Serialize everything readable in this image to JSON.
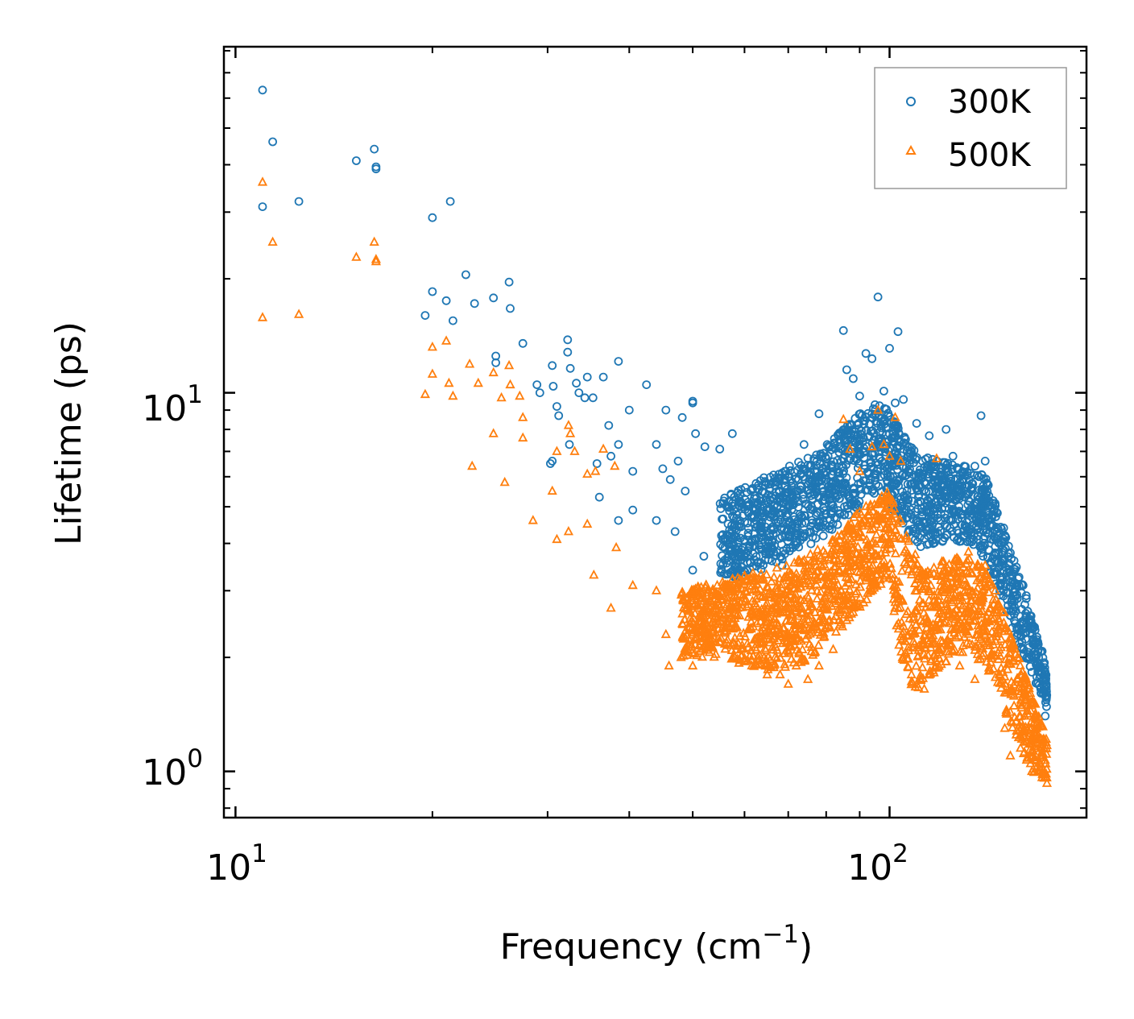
{
  "chart_data": {
    "type": "scatter",
    "title": "",
    "xlabel": "Frequency (cm",
    "xlabel_sup": "−1",
    "xlabel_close": ")",
    "ylabel": "Lifetime (ps)",
    "xscale": "log",
    "yscale": "log",
    "xlim": [
      9.6,
      200
    ],
    "ylim": [
      0.755,
      82
    ],
    "x_major_ticks": [
      {
        "value": 10,
        "base": "10",
        "exp": "1"
      },
      {
        "value": 100,
        "base": "10",
        "exp": "2"
      }
    ],
    "y_major_ticks": [
      {
        "value": 1,
        "base": "10",
        "exp": "0"
      },
      {
        "value": 10,
        "base": "10",
        "exp": "1"
      }
    ],
    "legend_position": "top-right",
    "series": [
      {
        "name": "300K",
        "marker": "circle",
        "color": "#1f77b4",
        "points": [
          [
            11.0,
            63
          ],
          [
            11.4,
            46
          ],
          [
            11.0,
            31
          ],
          [
            12.5,
            32
          ],
          [
            15.3,
            41
          ],
          [
            16.3,
            44
          ],
          [
            16.4,
            39.5
          ],
          [
            16.4,
            39
          ],
          [
            20.0,
            29
          ],
          [
            21.3,
            32
          ],
          [
            20.0,
            18.5
          ],
          [
            21.0,
            17.5
          ],
          [
            19.5,
            16
          ],
          [
            21.5,
            15.5
          ],
          [
            22.5,
            20.5
          ],
          [
            23.2,
            17.2
          ],
          [
            24.8,
            17.8
          ],
          [
            26.2,
            19.6
          ],
          [
            26.3,
            16.7
          ],
          [
            27.5,
            13.5
          ],
          [
            25.0,
            12
          ],
          [
            25.0,
            12.5
          ],
          [
            28.9,
            10.5
          ],
          [
            29.2,
            10
          ],
          [
            30.5,
            11.8
          ],
          [
            30.6,
            10.4
          ],
          [
            32.2,
            13.8
          ],
          [
            32.2,
            12.8
          ],
          [
            32.5,
            11.6
          ],
          [
            31.0,
            9.2
          ],
          [
            31.2,
            8.7
          ],
          [
            33.5,
            10
          ],
          [
            33.2,
            10.6
          ],
          [
            34.5,
            11
          ],
          [
            34.2,
            9.7
          ],
          [
            35.2,
            9.7
          ],
          [
            36.5,
            11
          ],
          [
            38.5,
            12.1
          ],
          [
            37.2,
            8.2
          ],
          [
            40.0,
            9
          ],
          [
            42.5,
            10.5
          ],
          [
            45.5,
            9
          ],
          [
            48.2,
            8.6
          ],
          [
            50.0,
            9.5
          ],
          [
            50.0,
            9.4
          ],
          [
            50.5,
            7.8
          ],
          [
            30.5,
            6.6
          ],
          [
            30.3,
            6.5
          ],
          [
            32.4,
            7.3
          ],
          [
            35.7,
            6.5
          ],
          [
            37.5,
            6.8
          ],
          [
            38.5,
            7.3
          ],
          [
            40.5,
            6.2
          ],
          [
            44.0,
            7.3
          ],
          [
            45.0,
            6.3
          ],
          [
            46.2,
            5.9
          ],
          [
            47.5,
            6.6
          ],
          [
            48.7,
            5.5
          ],
          [
            52.2,
            7.2
          ],
          [
            55.0,
            7.1
          ],
          [
            57.5,
            7.8
          ],
          [
            36.0,
            5.3
          ],
          [
            38.5,
            4.6
          ],
          [
            40.5,
            4.9
          ],
          [
            44.0,
            4.6
          ],
          [
            47.0,
            4.3
          ],
          [
            50.0,
            3.4
          ],
          [
            52.0,
            3.7
          ],
          [
            56.0,
            3.9
          ],
          [
            58.0,
            4.5
          ],
          [
            59.0,
            3.8
          ],
          [
            62.0,
            4.9
          ],
          [
            63.0,
            5.7
          ],
          [
            65.0,
            3.9
          ],
          [
            66.0,
            5.3
          ],
          [
            68.5,
            3.5
          ],
          [
            70.0,
            6.0
          ],
          [
            72.0,
            4.2
          ],
          [
            74.0,
            7.3
          ],
          [
            76.0,
            5.0
          ],
          [
            78.0,
            8.8
          ],
          [
            80.0,
            6.7
          ],
          [
            82.0,
            6.2
          ],
          [
            84.0,
            5.9
          ],
          [
            85.0,
            14.6
          ],
          [
            86.0,
            11.5
          ],
          [
            87.5,
            8.2
          ],
          [
            88.0,
            10.9
          ],
          [
            90.0,
            9.8
          ],
          [
            92.0,
            12.7
          ],
          [
            94.0,
            12.3
          ],
          [
            96.0,
            17.9
          ],
          [
            98.0,
            10.1
          ],
          [
            100.0,
            13.1
          ],
          [
            102.0,
            9.4
          ],
          [
            103.0,
            14.5
          ],
          [
            105.0,
            9.6
          ],
          [
            108.0,
            7.0
          ],
          [
            110.0,
            8.3
          ],
          [
            115.0,
            7.7
          ],
          [
            118.0,
            6.6
          ],
          [
            122.0,
            8.0
          ],
          [
            125.0,
            6.8
          ],
          [
            130.0,
            6.4
          ],
          [
            135.0,
            6.4
          ],
          [
            138.0,
            8.7
          ],
          [
            140.0,
            6.6
          ],
          [
            145.0,
            5.1
          ],
          [
            150.0,
            4.2
          ],
          [
            155.0,
            3.6
          ],
          [
            160.0,
            3.1
          ],
          [
            163.0,
            2.5
          ],
          [
            167.0,
            2.2
          ],
          [
            170.0,
            1.9
          ],
          [
            172.0,
            1.6
          ],
          [
            173.0,
            1.4
          ]
        ],
        "band": [
          [
            55,
            3.2,
            5.2
          ],
          [
            58,
            3.2,
            5.5
          ],
          [
            62,
            3.3,
            5.8
          ],
          [
            66,
            3.5,
            6.1
          ],
          [
            70,
            3.7,
            6.4
          ],
          [
            75,
            3.9,
            6.8
          ],
          [
            80,
            4.2,
            7.3
          ],
          [
            85,
            4.6,
            8.0
          ],
          [
            90,
            5.0,
            8.8
          ],
          [
            95,
            5.4,
            9.4
          ],
          [
            100,
            5.0,
            9.0
          ],
          [
            105,
            4.2,
            7.8
          ],
          [
            110,
            3.9,
            7.0
          ],
          [
            115,
            3.9,
            6.7
          ],
          [
            120,
            4.0,
            6.6
          ],
          [
            125,
            4.1,
            6.5
          ],
          [
            130,
            4.0,
            6.4
          ],
          [
            135,
            3.9,
            6.3
          ],
          [
            140,
            3.6,
            6.0
          ],
          [
            145,
            3.1,
            5.2
          ],
          [
            150,
            2.7,
            4.4
          ],
          [
            155,
            2.3,
            3.7
          ],
          [
            160,
            2.0,
            3.1
          ],
          [
            165,
            1.8,
            2.6
          ],
          [
            170,
            1.6,
            2.2
          ],
          [
            174,
            1.45,
            1.8
          ]
        ]
      },
      {
        "name": "500K",
        "marker": "triangle",
        "color": "#ff7f0e",
        "points": [
          [
            11.0,
            36
          ],
          [
            11.4,
            25
          ],
          [
            11.0,
            15.8
          ],
          [
            12.5,
            16.1
          ],
          [
            15.3,
            22.8
          ],
          [
            16.3,
            25.0
          ],
          [
            16.4,
            22.5
          ],
          [
            16.4,
            22.2
          ],
          [
            19.5,
            9.9
          ],
          [
            20.0,
            11.2
          ],
          [
            20.0,
            13.2
          ],
          [
            21.0,
            13.7
          ],
          [
            21.2,
            10.6
          ],
          [
            21.5,
            9.8
          ],
          [
            22.8,
            11.9
          ],
          [
            23.5,
            10.6
          ],
          [
            24.8,
            11.3
          ],
          [
            25.5,
            9.7
          ],
          [
            26.2,
            11.8
          ],
          [
            26.3,
            10.5
          ],
          [
            27.2,
            9.8
          ],
          [
            24.8,
            7.8
          ],
          [
            27.5,
            7.6
          ],
          [
            23.0,
            6.4
          ],
          [
            25.8,
            5.8
          ],
          [
            27.5,
            8.6
          ],
          [
            28.5,
            4.6
          ],
          [
            31.0,
            4.1
          ],
          [
            30.5,
            5.5
          ],
          [
            31.0,
            7.0
          ],
          [
            32.3,
            8.2
          ],
          [
            32.5,
            7.8
          ],
          [
            33.0,
            7.0
          ],
          [
            34.5,
            6.1
          ],
          [
            35.5,
            6.2
          ],
          [
            36.5,
            7.1
          ],
          [
            38.0,
            6.4
          ],
          [
            32.3,
            4.3
          ],
          [
            34.5,
            4.5
          ],
          [
            35.3,
            3.3
          ],
          [
            37.5,
            2.7
          ],
          [
            38.2,
            3.9
          ],
          [
            40.5,
            3.1
          ],
          [
            44.0,
            3.0
          ],
          [
            45.5,
            2.3
          ],
          [
            46.0,
            1.9
          ],
          [
            48.0,
            2.0
          ],
          [
            50.0,
            1.9
          ],
          [
            52.0,
            2.7
          ],
          [
            55.0,
            2.2
          ],
          [
            58.0,
            2.0
          ],
          [
            62.0,
            1.9
          ],
          [
            65.0,
            1.8
          ],
          [
            68.0,
            1.8
          ],
          [
            70.0,
            1.7
          ],
          [
            72.0,
            1.9
          ],
          [
            75.0,
            1.75
          ],
          [
            78.0,
            1.9
          ],
          [
            82.0,
            2.1
          ],
          [
            85.0,
            8.5
          ],
          [
            87.0,
            7.1
          ],
          [
            90.0,
            6.2
          ],
          [
            94.0,
            7.2
          ],
          [
            96.0,
            9.0
          ],
          [
            98.0,
            7.3
          ],
          [
            100.0,
            6.8
          ],
          [
            102.0,
            8.6
          ],
          [
            104.0,
            6.6
          ],
          [
            106.0,
            2.6
          ],
          [
            108.0,
            1.8
          ],
          [
            110.0,
            1.7
          ],
          [
            113.0,
            1.65
          ],
          [
            115.0,
            1.8
          ],
          [
            118.0,
            6.7
          ],
          [
            120.0,
            3.5
          ],
          [
            125.0,
            3.4
          ],
          [
            128.0,
            1.9
          ],
          [
            132.0,
            3.8
          ],
          [
            135.0,
            1.75
          ],
          [
            140.0,
            3.5
          ],
          [
            145.0,
            3.0
          ],
          [
            150.0,
            1.3
          ],
          [
            153.0,
            1.1
          ],
          [
            158.0,
            1.6
          ],
          [
            162.0,
            1.2
          ],
          [
            165.0,
            1.0
          ],
          [
            168.0,
            1.15
          ],
          [
            170.0,
            1.05
          ],
          [
            172.0,
            0.98
          ],
          [
            174.0,
            0.93
          ]
        ],
        "band": [
          [
            48,
            2.0,
            3.0
          ],
          [
            52,
            2.0,
            3.1
          ],
          [
            56,
            1.95,
            3.2
          ],
          [
            60,
            1.9,
            3.3
          ],
          [
            64,
            1.85,
            3.4
          ],
          [
            68,
            1.85,
            3.5
          ],
          [
            72,
            1.9,
            3.6
          ],
          [
            76,
            2.0,
            3.8
          ],
          [
            80,
            2.2,
            4.0
          ],
          [
            85,
            2.4,
            4.4
          ],
          [
            90,
            2.7,
            4.9
          ],
          [
            95,
            3.0,
            5.3
          ],
          [
            100,
            3.1,
            5.5
          ],
          [
            104,
            2.0,
            4.8
          ],
          [
            108,
            1.65,
            3.9
          ],
          [
            112,
            1.65,
            3.5
          ],
          [
            116,
            1.8,
            3.5
          ],
          [
            120,
            1.9,
            3.6
          ],
          [
            125,
            2.0,
            3.7
          ],
          [
            130,
            2.0,
            3.7
          ],
          [
            135,
            2.0,
            3.6
          ],
          [
            140,
            1.9,
            3.4
          ],
          [
            145,
            1.7,
            3.0
          ],
          [
            150,
            1.45,
            2.6
          ],
          [
            155,
            1.25,
            2.2
          ],
          [
            160,
            1.1,
            1.9
          ],
          [
            165,
            1.0,
            1.6
          ],
          [
            170,
            0.97,
            1.4
          ],
          [
            174,
            0.94,
            1.2
          ]
        ]
      }
    ]
  }
}
